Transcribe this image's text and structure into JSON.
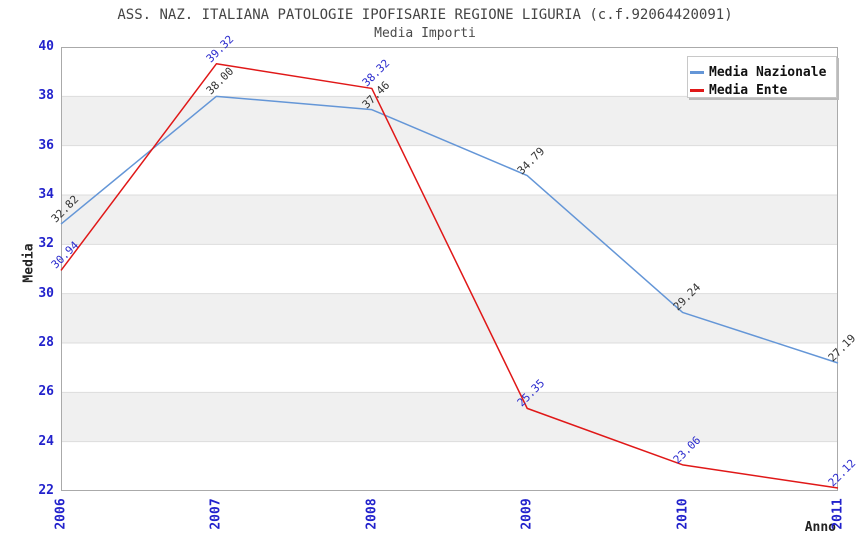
{
  "title": "ASS. NAZ. ITALIANA PATOLOGIE IPOFISARIE REGIONE LIGURIA (c.f.92064420091)",
  "subtitle": "Media Importi",
  "chart_data": {
    "type": "line",
    "x": [
      2006,
      2007,
      2008,
      2009,
      2010,
      2011
    ],
    "xlabel": "Anno",
    "ylabel": "Media",
    "ylim": [
      22,
      40
    ],
    "ytick_step": 2,
    "grid": true,
    "background_bands": true,
    "legend_position": "top-right",
    "series": [
      {
        "name": "Media Nazionale",
        "color": "#6496d7",
        "label_color": "#333333",
        "values": [
          32.82,
          38.0,
          37.46,
          34.79,
          29.24,
          27.19
        ]
      },
      {
        "name": "Media Ente",
        "color": "#e01818",
        "label_color": "#2b2bcd",
        "values": [
          30.94,
          39.32,
          38.32,
          25.35,
          23.06,
          22.12
        ]
      }
    ],
    "colors": {
      "axis_text": "#2222cc",
      "band_gray": "#f0f0f0",
      "band_white": "#ffffff",
      "gridline": "#dddddd",
      "plot_border": "#aaaaaa",
      "title_text": "#444444"
    }
  }
}
